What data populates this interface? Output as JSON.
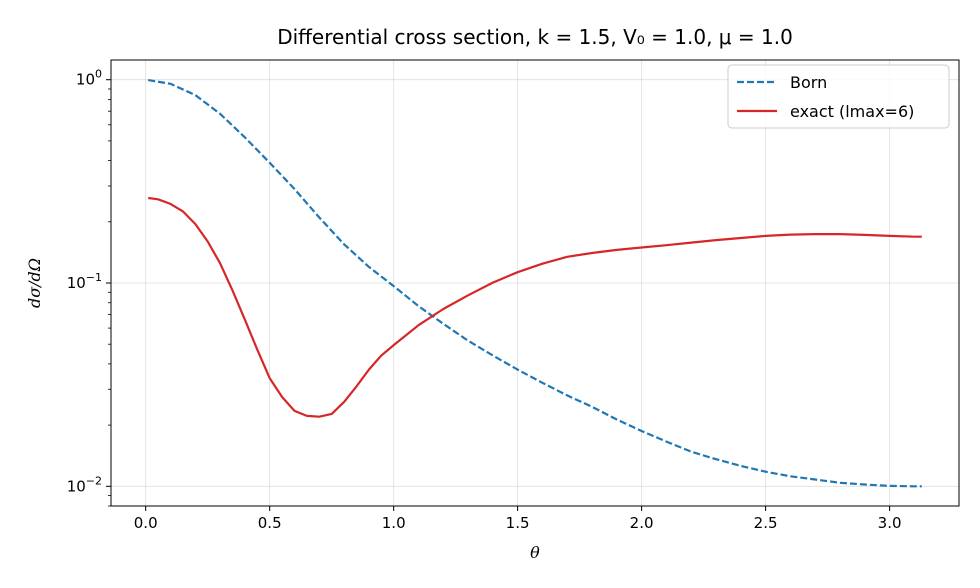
{
  "chart_data": {
    "type": "line",
    "title": "Differential cross section, k = 1.5, V₀ = 1.0, μ = 1.0",
    "xlabel": "θ",
    "ylabel": "dσ/dΩ",
    "xlim": [
      -0.14,
      3.28
    ],
    "ylim": [
      0.008,
      1.25
    ],
    "yscale": "log",
    "grid": true,
    "legend_position": "top-right",
    "x_ticks": [
      0.0,
      0.5,
      1.0,
      1.5,
      2.0,
      2.5,
      3.0
    ],
    "x_tick_labels": [
      "0.0",
      "0.5",
      "1.0",
      "1.5",
      "2.0",
      "2.5",
      "3.0"
    ],
    "y_ticks": [
      0.01,
      0.1,
      1.0
    ],
    "y_tick_labels": [
      {
        "base": "10",
        "exp": "−2"
      },
      {
        "base": "10",
        "exp": "−1"
      },
      {
        "base": "10",
        "exp": "0"
      }
    ],
    "series": [
      {
        "name": "Born",
        "color": "#1f77b4",
        "style": "dashed",
        "x": [
          0.01,
          0.1,
          0.2,
          0.3,
          0.4,
          0.5,
          0.6,
          0.7,
          0.8,
          0.9,
          1.0,
          1.1,
          1.2,
          1.3,
          1.4,
          1.5,
          1.6,
          1.7,
          1.8,
          1.9,
          2.0,
          2.1,
          2.2,
          2.3,
          2.4,
          2.5,
          2.6,
          2.7,
          2.8,
          2.9,
          3.0,
          3.1,
          3.13
        ],
        "y": [
          0.995,
          0.955,
          0.84,
          0.68,
          0.52,
          0.39,
          0.29,
          0.21,
          0.155,
          0.12,
          0.0965,
          0.077,
          0.063,
          0.052,
          0.044,
          0.0375,
          0.0323,
          0.028,
          0.0246,
          0.0213,
          0.0187,
          0.0166,
          0.0148,
          0.0136,
          0.0126,
          0.0118,
          0.0112,
          0.0108,
          0.0104,
          0.0102,
          0.01005,
          0.01,
          0.01
        ]
      },
      {
        "name": "exact (lmax=6)",
        "color": "#d62728",
        "style": "solid",
        "x": [
          0.01,
          0.05,
          0.1,
          0.15,
          0.2,
          0.25,
          0.3,
          0.35,
          0.4,
          0.45,
          0.5,
          0.55,
          0.6,
          0.65,
          0.7,
          0.75,
          0.8,
          0.85,
          0.9,
          0.95,
          1.0,
          1.1,
          1.2,
          1.3,
          1.4,
          1.5,
          1.6,
          1.7,
          1.8,
          1.9,
          2.0,
          2.1,
          2.2,
          2.3,
          2.4,
          2.5,
          2.6,
          2.7,
          2.8,
          2.9,
          3.0,
          3.1,
          3.13
        ],
        "y": [
          0.262,
          0.258,
          0.245,
          0.225,
          0.195,
          0.16,
          0.125,
          0.092,
          0.066,
          0.047,
          0.034,
          0.0275,
          0.0235,
          0.0222,
          0.022,
          0.0227,
          0.026,
          0.031,
          0.0375,
          0.044,
          0.0495,
          0.062,
          0.0745,
          0.087,
          0.1005,
          0.113,
          0.1245,
          0.1345,
          0.1405,
          0.1455,
          0.1495,
          0.1535,
          0.158,
          0.1625,
          0.1665,
          0.1705,
          0.173,
          0.174,
          0.174,
          0.1725,
          0.1705,
          0.169,
          0.169
        ]
      }
    ]
  }
}
